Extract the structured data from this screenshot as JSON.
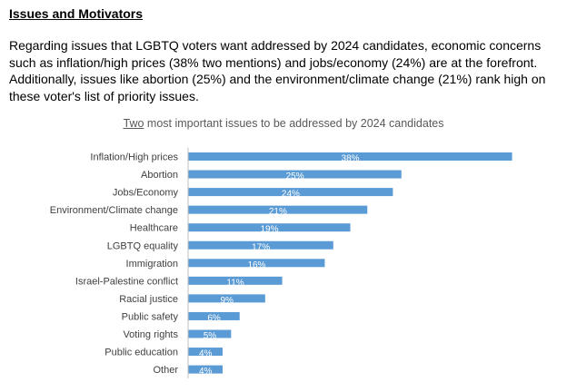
{
  "heading": "Issues and Motivators",
  "intro": "Regarding issues that LGBTQ voters want addressed by 2024 candidates, economic concerns such as inflation/high prices (38% two mentions) and jobs/economy (24%) are at the forefront. Additionally, issues like abortion (25%) and the environment/climate change (21%) rank high on these voter's list of priority issues.",
  "chart_data": {
    "type": "bar",
    "orientation": "horizontal",
    "title_underlined": "Two",
    "title_rest": " most important issues to be addressed by 2024 candidates",
    "categories": [
      "Inflation/High prices",
      "Abortion",
      "Jobs/Economy",
      "Environment/Climate change",
      "Healthcare",
      "LGBTQ equality",
      "Immigration",
      "Israel-Palestine conflict",
      "Racial justice",
      "Public safety",
      "Voting rights",
      "Public education",
      "Other"
    ],
    "values": [
      38,
      25,
      24,
      21,
      19,
      17,
      16,
      11,
      9,
      6,
      5,
      4,
      4
    ],
    "data_labels": [
      "38%",
      "25%",
      "24%",
      "21%",
      "19%",
      "17%",
      "16%",
      "11%",
      "9%",
      "6%",
      "5%",
      "4%",
      "4%"
    ],
    "bar_color": "#5b9bd5",
    "xlim": [
      0,
      40
    ],
    "grid": false,
    "legend": "none"
  }
}
